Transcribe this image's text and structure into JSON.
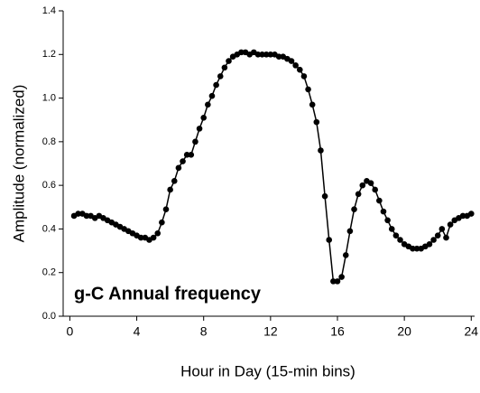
{
  "chart_data": {
    "type": "line",
    "x_label": "Hour in Day (15-min bins)",
    "y_label": "Amplitude (normalized)",
    "annotation": "g-C Annual frequency",
    "xlim": [
      -0.4,
      24.2
    ],
    "ylim": [
      0,
      1.4
    ],
    "xticks": [
      0,
      4,
      8,
      12,
      16,
      20,
      24
    ],
    "yticks": [
      {
        "value": 0,
        "label": "0.0"
      },
      0.2,
      0.4,
      0.6,
      0.8,
      {
        "value": 1,
        "label": "1.0"
      },
      1.2,
      1.4
    ],
    "x": [
      0.25,
      0.5,
      0.75,
      1,
      1.25,
      1.5,
      1.75,
      2,
      2.25,
      2.5,
      2.75,
      3,
      3.25,
      3.5,
      3.75,
      4,
      4.25,
      4.5,
      4.75,
      5,
      5.25,
      5.5,
      5.75,
      6,
      6.25,
      6.5,
      6.75,
      7,
      7.25,
      7.5,
      7.75,
      8,
      8.25,
      8.5,
      8.75,
      9,
      9.25,
      9.5,
      9.75,
      10,
      10.25,
      10.5,
      10.75,
      11,
      11.25,
      11.5,
      11.75,
      12,
      12.25,
      12.5,
      12.75,
      13,
      13.25,
      13.5,
      13.75,
      14,
      14.25,
      14.5,
      14.75,
      15,
      15.25,
      15.5,
      15.75,
      16,
      16.25,
      16.5,
      16.75,
      17,
      17.25,
      17.5,
      17.75,
      18,
      18.25,
      18.5,
      18.75,
      19,
      19.25,
      19.5,
      19.75,
      20,
      20.25,
      20.5,
      20.75,
      21,
      21.25,
      21.5,
      21.75,
      22,
      22.25,
      22.5,
      22.75,
      23,
      23.25,
      23.5,
      23.75,
      24
    ],
    "series": [
      {
        "color": "#000000",
        "values": [
          0.46,
          0.47,
          0.47,
          0.46,
          0.46,
          0.45,
          0.46,
          0.45,
          0.44,
          0.43,
          0.42,
          0.41,
          0.4,
          0.39,
          0.38,
          0.37,
          0.36,
          0.36,
          0.35,
          0.36,
          0.38,
          0.43,
          0.49,
          0.58,
          0.62,
          0.68,
          0.71,
          0.74,
          0.74,
          0.8,
          0.86,
          0.91,
          0.97,
          1.01,
          1.06,
          1.1,
          1.14,
          1.17,
          1.19,
          1.2,
          1.21,
          1.21,
          1.2,
          1.21,
          1.2,
          1.2,
          1.2,
          1.2,
          1.2,
          1.19,
          1.19,
          1.18,
          1.17,
          1.15,
          1.13,
          1.1,
          1.04,
          0.97,
          0.89,
          0.76,
          0.55,
          0.35,
          0.16,
          0.16,
          0.18,
          0.28,
          0.39,
          0.49,
          0.56,
          0.6,
          0.62,
          0.61,
          0.58,
          0.53,
          0.48,
          0.44,
          0.4,
          0.37,
          0.35,
          0.33,
          0.32,
          0.31,
          0.31,
          0.31,
          0.32,
          0.33,
          0.35,
          0.37,
          0.4,
          0.36,
          0.42,
          0.44,
          0.45,
          0.46,
          0.46,
          0.47
        ]
      }
    ]
  }
}
